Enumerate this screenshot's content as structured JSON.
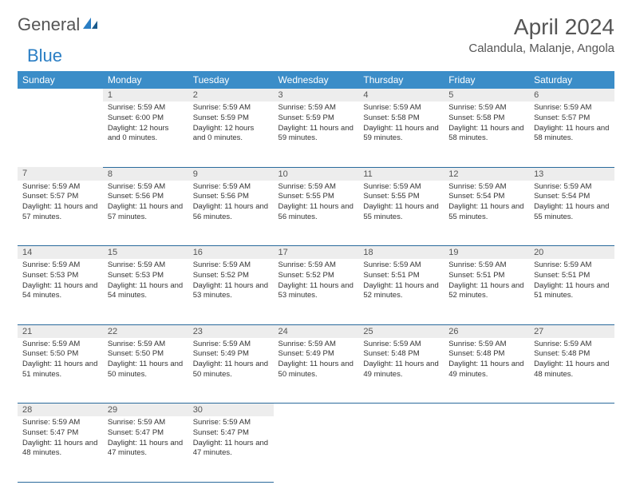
{
  "logo": {
    "part1": "General",
    "part2": "Blue"
  },
  "title": "April 2024",
  "location": "Calandula, Malanje, Angola",
  "colors": {
    "header_bg": "#3b8dc8",
    "header_text": "#ffffff",
    "daynum_bg": "#ededed",
    "border": "#2a6a9c",
    "title_text": "#555555",
    "body_text": "#333333",
    "logo_blue": "#2a7ec4"
  },
  "day_headers": [
    "Sunday",
    "Monday",
    "Tuesday",
    "Wednesday",
    "Thursday",
    "Friday",
    "Saturday"
  ],
  "weeks": [
    {
      "nums": [
        "",
        "1",
        "2",
        "3",
        "4",
        "5",
        "6"
      ],
      "cells": [
        {
          "sunrise": "",
          "sunset": "",
          "daylight": ""
        },
        {
          "sunrise": "Sunrise: 5:59 AM",
          "sunset": "Sunset: 6:00 PM",
          "daylight": "Daylight: 12 hours and 0 minutes."
        },
        {
          "sunrise": "Sunrise: 5:59 AM",
          "sunset": "Sunset: 5:59 PM",
          "daylight": "Daylight: 12 hours and 0 minutes."
        },
        {
          "sunrise": "Sunrise: 5:59 AM",
          "sunset": "Sunset: 5:59 PM",
          "daylight": "Daylight: 11 hours and 59 minutes."
        },
        {
          "sunrise": "Sunrise: 5:59 AM",
          "sunset": "Sunset: 5:58 PM",
          "daylight": "Daylight: 11 hours and 59 minutes."
        },
        {
          "sunrise": "Sunrise: 5:59 AM",
          "sunset": "Sunset: 5:58 PM",
          "daylight": "Daylight: 11 hours and 58 minutes."
        },
        {
          "sunrise": "Sunrise: 5:59 AM",
          "sunset": "Sunset: 5:57 PM",
          "daylight": "Daylight: 11 hours and 58 minutes."
        }
      ]
    },
    {
      "nums": [
        "7",
        "8",
        "9",
        "10",
        "11",
        "12",
        "13"
      ],
      "cells": [
        {
          "sunrise": "Sunrise: 5:59 AM",
          "sunset": "Sunset: 5:57 PM",
          "daylight": "Daylight: 11 hours and 57 minutes."
        },
        {
          "sunrise": "Sunrise: 5:59 AM",
          "sunset": "Sunset: 5:56 PM",
          "daylight": "Daylight: 11 hours and 57 minutes."
        },
        {
          "sunrise": "Sunrise: 5:59 AM",
          "sunset": "Sunset: 5:56 PM",
          "daylight": "Daylight: 11 hours and 56 minutes."
        },
        {
          "sunrise": "Sunrise: 5:59 AM",
          "sunset": "Sunset: 5:55 PM",
          "daylight": "Daylight: 11 hours and 56 minutes."
        },
        {
          "sunrise": "Sunrise: 5:59 AM",
          "sunset": "Sunset: 5:55 PM",
          "daylight": "Daylight: 11 hours and 55 minutes."
        },
        {
          "sunrise": "Sunrise: 5:59 AM",
          "sunset": "Sunset: 5:54 PM",
          "daylight": "Daylight: 11 hours and 55 minutes."
        },
        {
          "sunrise": "Sunrise: 5:59 AM",
          "sunset": "Sunset: 5:54 PM",
          "daylight": "Daylight: 11 hours and 55 minutes."
        }
      ]
    },
    {
      "nums": [
        "14",
        "15",
        "16",
        "17",
        "18",
        "19",
        "20"
      ],
      "cells": [
        {
          "sunrise": "Sunrise: 5:59 AM",
          "sunset": "Sunset: 5:53 PM",
          "daylight": "Daylight: 11 hours and 54 minutes."
        },
        {
          "sunrise": "Sunrise: 5:59 AM",
          "sunset": "Sunset: 5:53 PM",
          "daylight": "Daylight: 11 hours and 54 minutes."
        },
        {
          "sunrise": "Sunrise: 5:59 AM",
          "sunset": "Sunset: 5:52 PM",
          "daylight": "Daylight: 11 hours and 53 minutes."
        },
        {
          "sunrise": "Sunrise: 5:59 AM",
          "sunset": "Sunset: 5:52 PM",
          "daylight": "Daylight: 11 hours and 53 minutes."
        },
        {
          "sunrise": "Sunrise: 5:59 AM",
          "sunset": "Sunset: 5:51 PM",
          "daylight": "Daylight: 11 hours and 52 minutes."
        },
        {
          "sunrise": "Sunrise: 5:59 AM",
          "sunset": "Sunset: 5:51 PM",
          "daylight": "Daylight: 11 hours and 52 minutes."
        },
        {
          "sunrise": "Sunrise: 5:59 AM",
          "sunset": "Sunset: 5:51 PM",
          "daylight": "Daylight: 11 hours and 51 minutes."
        }
      ]
    },
    {
      "nums": [
        "21",
        "22",
        "23",
        "24",
        "25",
        "26",
        "27"
      ],
      "cells": [
        {
          "sunrise": "Sunrise: 5:59 AM",
          "sunset": "Sunset: 5:50 PM",
          "daylight": "Daylight: 11 hours and 51 minutes."
        },
        {
          "sunrise": "Sunrise: 5:59 AM",
          "sunset": "Sunset: 5:50 PM",
          "daylight": "Daylight: 11 hours and 50 minutes."
        },
        {
          "sunrise": "Sunrise: 5:59 AM",
          "sunset": "Sunset: 5:49 PM",
          "daylight": "Daylight: 11 hours and 50 minutes."
        },
        {
          "sunrise": "Sunrise: 5:59 AM",
          "sunset": "Sunset: 5:49 PM",
          "daylight": "Daylight: 11 hours and 50 minutes."
        },
        {
          "sunrise": "Sunrise: 5:59 AM",
          "sunset": "Sunset: 5:48 PM",
          "daylight": "Daylight: 11 hours and 49 minutes."
        },
        {
          "sunrise": "Sunrise: 5:59 AM",
          "sunset": "Sunset: 5:48 PM",
          "daylight": "Daylight: 11 hours and 49 minutes."
        },
        {
          "sunrise": "Sunrise: 5:59 AM",
          "sunset": "Sunset: 5:48 PM",
          "daylight": "Daylight: 11 hours and 48 minutes."
        }
      ]
    },
    {
      "nums": [
        "28",
        "29",
        "30",
        "",
        "",
        "",
        ""
      ],
      "cells": [
        {
          "sunrise": "Sunrise: 5:59 AM",
          "sunset": "Sunset: 5:47 PM",
          "daylight": "Daylight: 11 hours and 48 minutes."
        },
        {
          "sunrise": "Sunrise: 5:59 AM",
          "sunset": "Sunset: 5:47 PM",
          "daylight": "Daylight: 11 hours and 47 minutes."
        },
        {
          "sunrise": "Sunrise: 5:59 AM",
          "sunset": "Sunset: 5:47 PM",
          "daylight": "Daylight: 11 hours and 47 minutes."
        },
        {
          "sunrise": "",
          "sunset": "",
          "daylight": ""
        },
        {
          "sunrise": "",
          "sunset": "",
          "daylight": ""
        },
        {
          "sunrise": "",
          "sunset": "",
          "daylight": ""
        },
        {
          "sunrise": "",
          "sunset": "",
          "daylight": ""
        }
      ]
    }
  ]
}
